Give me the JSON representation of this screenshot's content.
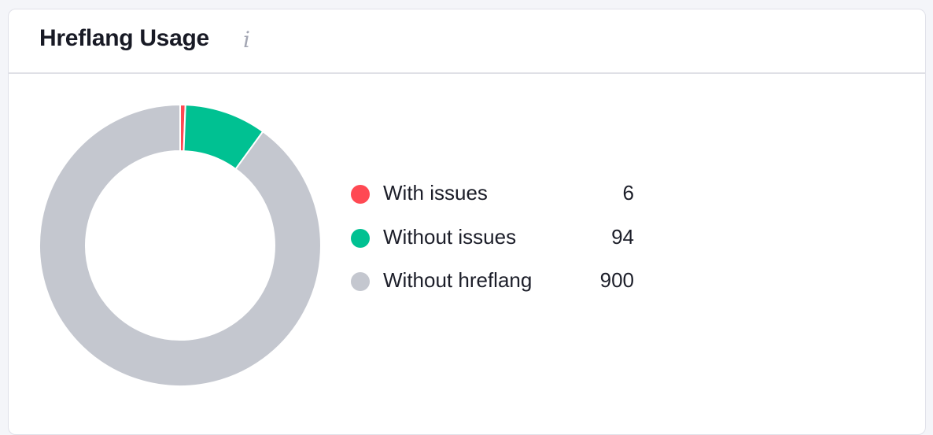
{
  "header": {
    "title": "Hreflang Usage",
    "info_icon": "info-icon"
  },
  "chart_data": {
    "type": "pie",
    "donut": true,
    "categories": [
      "With issues",
      "Without issues",
      "Without hreflang"
    ],
    "values": [
      6,
      94,
      900
    ],
    "colors": [
      "#ff4953",
      "#00c192",
      "#c4c7cf"
    ],
    "legend_placement": "right"
  },
  "legend": [
    {
      "label": "With issues",
      "value": "6"
    },
    {
      "label": "Without issues",
      "value": "94"
    },
    {
      "label": "Without hreflang",
      "value": "900"
    }
  ]
}
